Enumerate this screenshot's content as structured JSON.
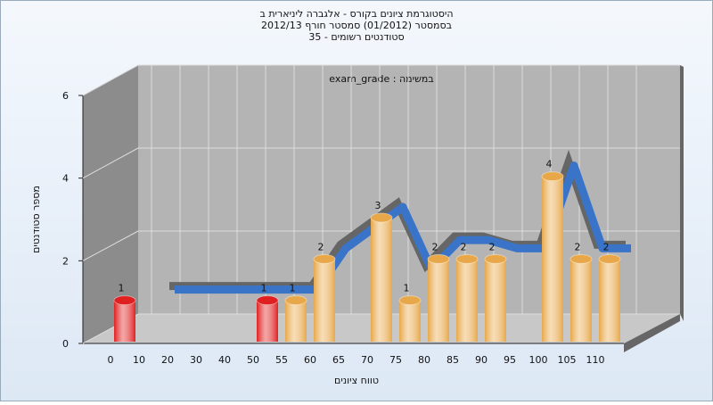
{
  "chart_data": {
    "type": "bar",
    "title": "היסטוגרמת ציונים בקורס - אלגברה ליניארית ב",
    "subtitle": [
      "בסמסטר  (01/2012)  סמסטר חורף 2012/13",
      "סטודנטים רשומים - 35"
    ],
    "annotation": "exam_grade : במשימה",
    "x_label": "טווח ציונים",
    "y_label": "מספר סטודנטים",
    "categories": [
      "0",
      "10",
      "20",
      "30",
      "40",
      "50",
      "55",
      "60",
      "65",
      "70",
      "75",
      "80",
      "85",
      "90",
      "95",
      "100",
      "105",
      "110"
    ],
    "values": [
      1,
      0,
      0,
      0,
      0,
      1,
      1,
      2,
      0,
      3,
      1,
      2,
      2,
      2,
      0,
      4,
      2,
      2
    ],
    "bar_colors": [
      "#e02020",
      "#e02020",
      "#e02020",
      "#e02020",
      "#e02020",
      "#e02020",
      "#e8a84a",
      "#e8a84a",
      "#e8a84a",
      "#e8a84a",
      "#e8a84a",
      "#e8a84a",
      "#e8a84a",
      "#e8a84a",
      "#e8a84a",
      "#e8a84a",
      "#e8a84a",
      "#e8a84a"
    ],
    "trend": {
      "color": "#3a74c8",
      "values": [
        null,
        1,
        1,
        1,
        1,
        1,
        1,
        2,
        2.5,
        3,
        1.5,
        2.2,
        2.2,
        2,
        2,
        4,
        2,
        2
      ]
    },
    "ylim": [
      0,
      6
    ],
    "yticks": [
      0,
      2,
      4,
      6
    ],
    "grid": true
  }
}
